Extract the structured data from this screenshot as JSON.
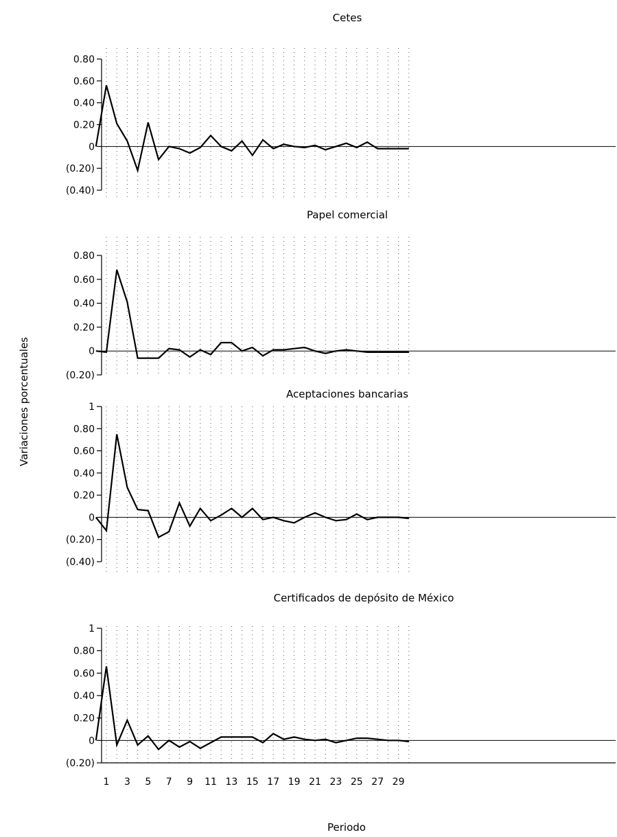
{
  "figure": {
    "ylabel": "Variaciones porcentuales",
    "xlabel": "Periodo",
    "x_ticks": [
      1,
      3,
      5,
      7,
      9,
      11,
      13,
      15,
      17,
      19,
      21,
      23,
      25,
      27,
      29
    ]
  },
  "chart_data": [
    {
      "type": "line",
      "title": "Cetes",
      "x": [
        0,
        1,
        2,
        3,
        4,
        5,
        6,
        7,
        8,
        9,
        10,
        11,
        12,
        13,
        14,
        15,
        16,
        17,
        18,
        19,
        20,
        21,
        22,
        23,
        24,
        25,
        26,
        27,
        28,
        29,
        30
      ],
      "y": [
        0,
        0.56,
        0.21,
        0.05,
        -0.22,
        0.22,
        -0.12,
        0,
        -0.02,
        -0.06,
        -0.01,
        0.1,
        0,
        -0.04,
        0.05,
        -0.08,
        0.06,
        -0.02,
        0.02,
        0,
        -0.01,
        0.01,
        -0.03,
        0,
        0.03,
        -0.01,
        0.04,
        -0.02,
        -0.02,
        -0.02,
        -0.02
      ],
      "ylim": [
        -0.4,
        0.8
      ],
      "y_ticks": [
        0.8,
        0.6,
        0.4,
        0.2,
        0,
        -0.2,
        -0.4
      ],
      "y_tick_labels": [
        "0.80",
        "0.60",
        "0.40",
        "0.20",
        "0",
        "(0.20)",
        "(0.40)"
      ],
      "grid": "vertical dotted"
    },
    {
      "type": "line",
      "title": "Papel comercial",
      "x": [
        0,
        1,
        2,
        3,
        4,
        5,
        6,
        7,
        8,
        9,
        10,
        11,
        12,
        13,
        14,
        15,
        16,
        17,
        18,
        19,
        20,
        21,
        22,
        23,
        24,
        25,
        26,
        27,
        28,
        29,
        30
      ],
      "y": [
        0,
        -0.01,
        0.68,
        0.41,
        -0.06,
        -0.06,
        -0.06,
        0.02,
        0.01,
        -0.05,
        0.01,
        -0.03,
        0.07,
        0.07,
        0,
        0.03,
        -0.04,
        0.01,
        0.01,
        0.02,
        0.03,
        0,
        -0.02,
        0,
        0.01,
        0,
        -0.01,
        -0.01,
        -0.01,
        -0.01,
        -0.01
      ],
      "ylim": [
        -0.2,
        0.8
      ],
      "y_ticks": [
        0.8,
        0.6,
        0.4,
        0.2,
        0,
        -0.2
      ],
      "y_tick_labels": [
        "0.80",
        "0.60",
        "0.40",
        "0.20",
        "0",
        "(0.20)"
      ],
      "grid": "vertical dotted"
    },
    {
      "type": "line",
      "title": "Aceptaciones bancarias",
      "x": [
        0,
        1,
        2,
        3,
        4,
        5,
        6,
        7,
        8,
        9,
        10,
        11,
        12,
        13,
        14,
        15,
        16,
        17,
        18,
        19,
        20,
        21,
        22,
        23,
        24,
        25,
        26,
        27,
        28,
        29,
        30
      ],
      "y": [
        0,
        -0.12,
        0.75,
        0.27,
        0.07,
        0.06,
        -0.18,
        -0.13,
        0.13,
        -0.08,
        0.08,
        -0.03,
        0.02,
        0.08,
        0,
        0.08,
        -0.02,
        0,
        -0.03,
        -0.05,
        0,
        0.04,
        0,
        -0.03,
        -0.02,
        0.03,
        -0.02,
        0,
        0,
        0,
        -0.01
      ],
      "ylim": [
        -0.4,
        1
      ],
      "y_ticks": [
        1,
        0.8,
        0.6,
        0.4,
        0.2,
        0,
        -0.2,
        -0.4
      ],
      "y_tick_labels": [
        "1",
        "0.80",
        "0.60",
        "0.40",
        "0.20",
        "0",
        "(0.20)",
        "(0.40)"
      ],
      "grid": "vertical dotted"
    },
    {
      "type": "line",
      "title": "Certificados de depósito de México",
      "x": [
        0,
        1,
        2,
        3,
        4,
        5,
        6,
        7,
        8,
        9,
        10,
        11,
        12,
        13,
        14,
        15,
        16,
        17,
        18,
        19,
        20,
        21,
        22,
        23,
        24,
        25,
        26,
        27,
        28,
        29,
        30
      ],
      "y": [
        0,
        0.66,
        -0.04,
        0.18,
        -0.04,
        0.04,
        -0.08,
        0,
        -0.06,
        -0.01,
        -0.07,
        -0.02,
        0.03,
        0.03,
        0.03,
        0.03,
        -0.02,
        0.06,
        0.01,
        0.03,
        0.01,
        0,
        0.01,
        -0.02,
        0,
        0.02,
        0.02,
        0.01,
        0,
        0,
        -0.01
      ],
      "ylim": [
        -0.2,
        1
      ],
      "y_ticks": [
        1,
        0.8,
        0.6,
        0.4,
        0.2,
        0,
        -0.2
      ],
      "y_tick_labels": [
        "1",
        "0.80",
        "0.60",
        "0.40",
        "0.20",
        "0",
        "(0.20)"
      ],
      "grid": "vertical dotted"
    }
  ]
}
